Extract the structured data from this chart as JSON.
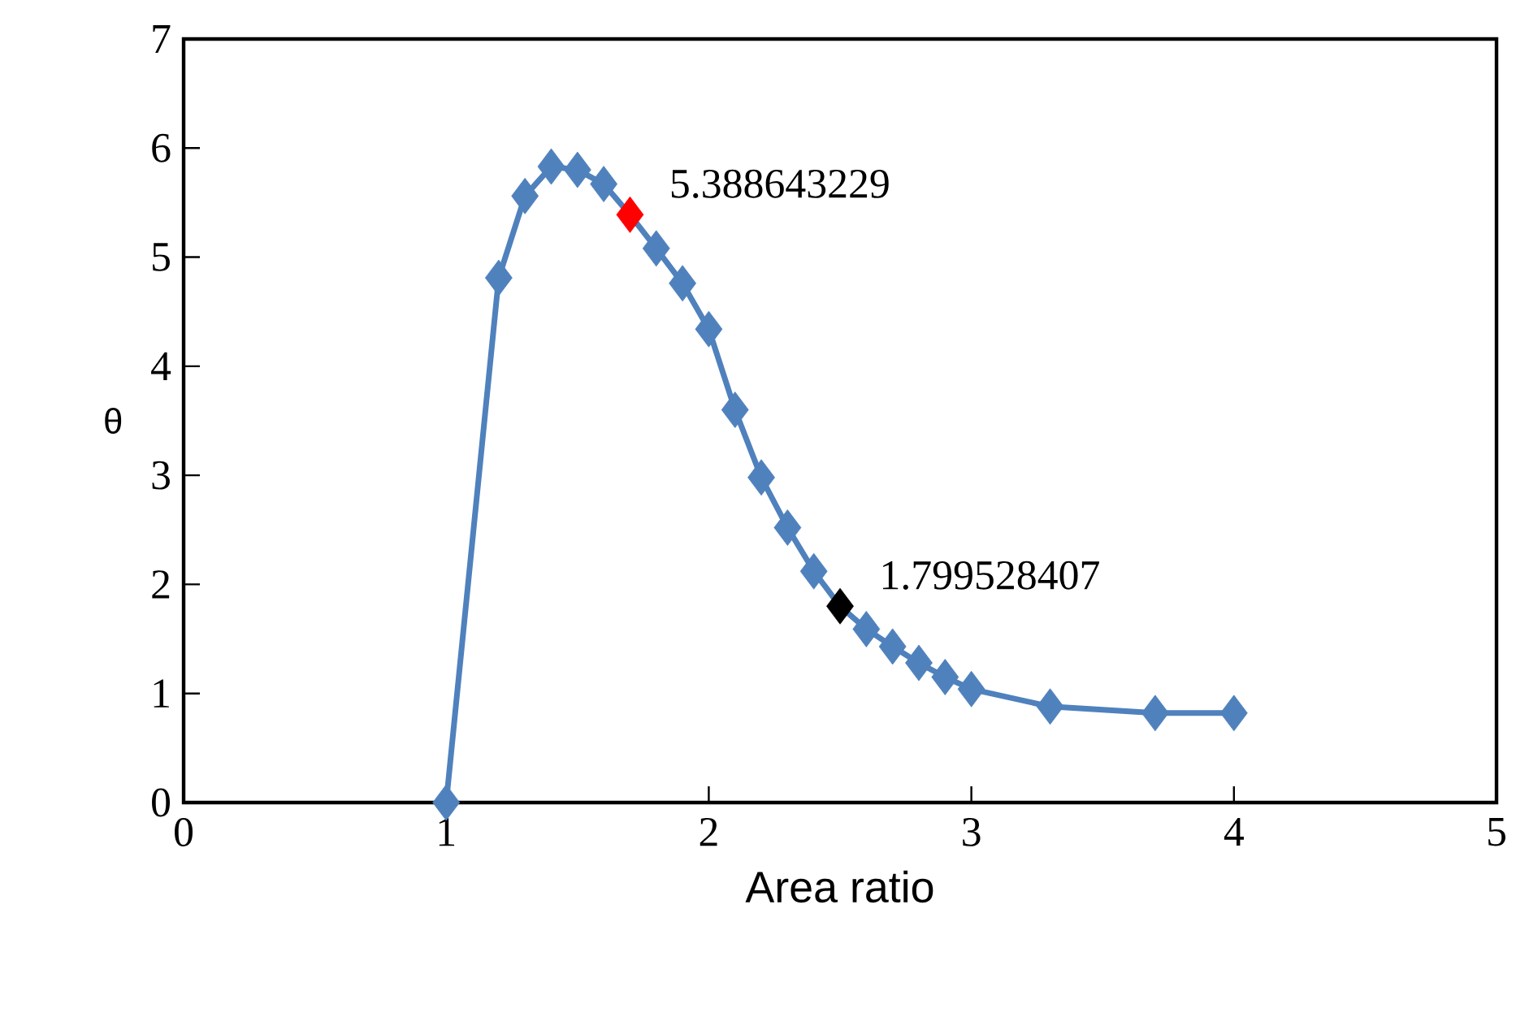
{
  "chart_data": {
    "type": "line",
    "xlabel": "Area ratio",
    "ylabel": "θ",
    "x": [
      1,
      1.2,
      1.3,
      1.4,
      1.5,
      1.6,
      1.7,
      1.8,
      1.9,
      2.0,
      2.1,
      2.2,
      2.3,
      2.4,
      2.5,
      2.6,
      2.7,
      2.8,
      2.9,
      3.0,
      3.3,
      3.7,
      4.0
    ],
    "values": [
      0,
      4.81,
      5.56,
      5.83,
      5.8,
      5.67,
      5.388643229,
      5.08,
      4.76,
      4.34,
      3.6,
      2.98,
      2.52,
      2.12,
      1.799528407,
      1.59,
      1.43,
      1.28,
      1.15,
      1.04,
      0.88,
      0.82,
      0.82
    ],
    "color": "#4f81bd",
    "colors": [
      "#4f81bd",
      "#4f81bd",
      "#4f81bd",
      "#4f81bd",
      "#4f81bd",
      "#4f81bd",
      "#ff0000",
      "#4f81bd",
      "#4f81bd",
      "#4f81bd",
      "#4f81bd",
      "#4f81bd",
      "#4f81bd",
      "#4f81bd",
      "#000000",
      "#4f81bd",
      "#4f81bd",
      "#4f81bd",
      "#4f81bd",
      "#4f81bd",
      "#4f81bd",
      "#4f81bd",
      "#4f81bd"
    ],
    "value_labels": [
      null,
      null,
      null,
      null,
      null,
      null,
      "5.388643229",
      null,
      null,
      null,
      null,
      null,
      null,
      null,
      "1.799528407",
      null,
      null,
      null,
      null,
      null,
      null,
      null,
      null
    ],
    "xlim": [
      0,
      5
    ],
    "xticks": [
      0,
      1,
      2,
      3,
      4,
      5
    ],
    "ylim": [
      0,
      7
    ],
    "yticks": [
      0,
      1,
      2,
      3,
      4,
      5,
      6,
      7
    ],
    "grid": false,
    "marker": "diamond",
    "line_style": "solid"
  }
}
